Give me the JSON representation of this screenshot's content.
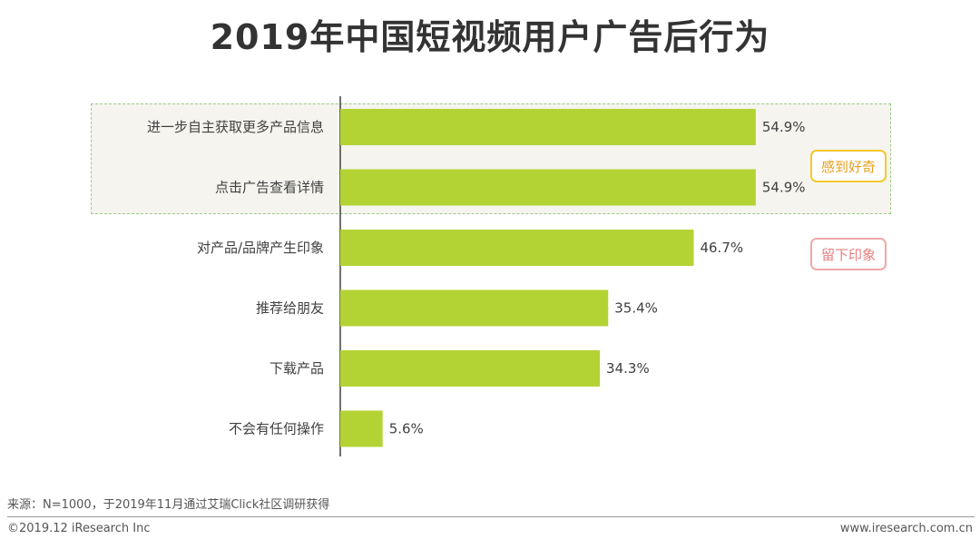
{
  "title": "2019年中国短视频用户广告后行为",
  "chart_data": {
    "type": "bar",
    "orientation": "horizontal",
    "title": "2019年中国短视频用户广告后行为",
    "categories": [
      "进一步自主获取更多产品信息",
      "点击广告查看详情",
      "对产品/品牌产生印象",
      "推荐给朋友",
      "下载产品",
      "不会有任何操作"
    ],
    "values": [
      54.9,
      54.9,
      46.7,
      35.4,
      34.3,
      5.6
    ],
    "value_labels": [
      "54.9%",
      "54.9%",
      "46.7%",
      "35.4%",
      "34.3%",
      "5.6%"
    ],
    "unit": "%",
    "xlim": [
      0,
      100
    ],
    "bar_color": "#b3d334",
    "annotations": [
      {
        "label": "感到好奇",
        "applies_to": [
          "进一步自主获取更多产品信息",
          "点击广告查看详情"
        ]
      },
      {
        "label": "留下印象",
        "applies_to": [
          "对产品/品牌产生印象"
        ]
      }
    ]
  },
  "annotations": {
    "curious": "感到好奇",
    "impression": "留下印象"
  },
  "footer": {
    "source": "来源：N=1000，于2019年11月通过艾瑞Click社区调研获得",
    "copyright": "©2019.12 iResearch Inc",
    "website": "www.iresearch.com.cn"
  }
}
